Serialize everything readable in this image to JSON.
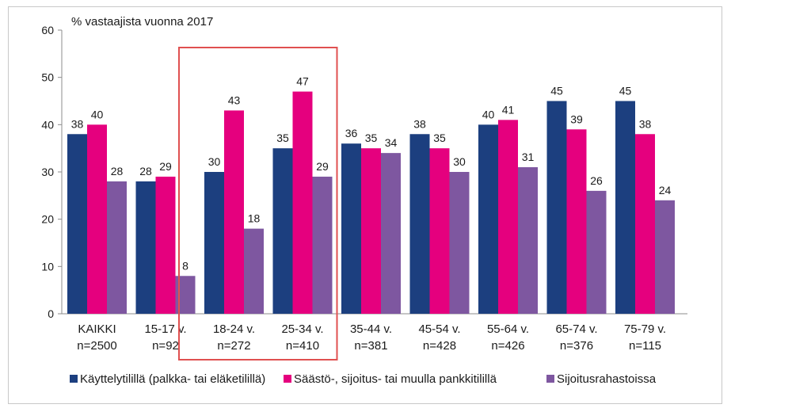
{
  "chart_data": {
    "type": "bar",
    "title": "% vastaajista vuonna 2017",
    "xlabel": "",
    "ylabel": "",
    "ylim": [
      0,
      60
    ],
    "yticks": [
      0,
      10,
      20,
      30,
      40,
      50,
      60
    ],
    "grid": false,
    "legend": "bottom",
    "categories": [
      {
        "name": "KAIKKI",
        "n": "n=2500"
      },
      {
        "name": "15-17 v.",
        "n": "n=92"
      },
      {
        "name": "18-24 v.",
        "n": "n=272"
      },
      {
        "name": "25-34 v.",
        "n": "n=410"
      },
      {
        "name": "35-44 v.",
        "n": "n=381"
      },
      {
        "name": "45-54 v.",
        "n": "n=428"
      },
      {
        "name": "55-64 v.",
        "n": "n=426"
      },
      {
        "name": "65-74 v.",
        "n": "n=376"
      },
      {
        "name": "75-79 v.",
        "n": "n=115"
      }
    ],
    "series": [
      {
        "name": "Käyttelytilillä (palkka- tai eläketilillä)",
        "color": "#1c3f7f",
        "values": [
          38,
          28,
          30,
          35,
          36,
          38,
          40,
          45,
          45
        ]
      },
      {
        "name": "Säästö-, sijoitus- tai muulla pankkitilillä",
        "color": "#e5007e",
        "values": [
          40,
          29,
          43,
          47,
          35,
          35,
          41,
          39,
          38
        ]
      },
      {
        "name": "Sijoitusrahastoissa",
        "color": "#7e57a0",
        "values": [
          28,
          8,
          18,
          29,
          34,
          30,
          31,
          26,
          24
        ]
      }
    ],
    "highlight": {
      "categories": [
        "18-24 v.",
        "25-34 v."
      ],
      "color": "#e05050"
    }
  }
}
